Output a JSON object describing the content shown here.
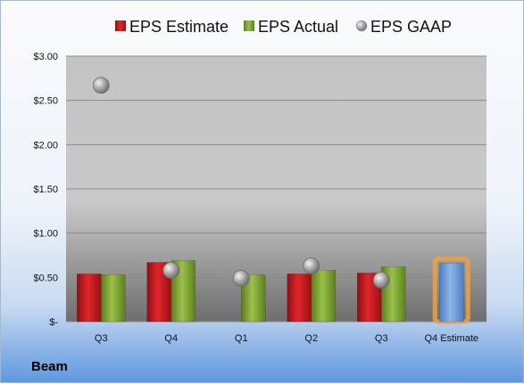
{
  "brand": "Beam",
  "chart_data": {
    "type": "bar",
    "categories": [
      "Q3",
      "Q4",
      "Q1",
      "Q2",
      "Q3",
      "Q4 Estimate"
    ],
    "series": [
      {
        "name": "EPS Estimate",
        "kind": "bar",
        "color": "#c0181c",
        "values": [
          0.54,
          0.67,
          null,
          0.54,
          0.55,
          null
        ]
      },
      {
        "name": "EPS Actual",
        "kind": "bar",
        "color": "#7a9e2e",
        "values": [
          0.53,
          0.69,
          0.53,
          0.58,
          0.62,
          null
        ]
      },
      {
        "name": "EPS GAAP",
        "kind": "marker",
        "color": "#9a9a9a",
        "values": [
          2.67,
          0.58,
          0.49,
          0.63,
          0.47,
          null
        ]
      },
      {
        "name": "",
        "kind": "highlight-bar",
        "color": "#6f9fdc",
        "values": [
          null,
          null,
          null,
          null,
          null,
          0.66
        ]
      }
    ],
    "ylim": [
      0,
      3
    ],
    "yticks": [
      0,
      0.5,
      1,
      1.5,
      2,
      2.5,
      3
    ],
    "ytick_labels": [
      "$-",
      "$0.50",
      "$1.00",
      "$1.50",
      "$2.00",
      "$2.50",
      "$3.00"
    ],
    "grid": true,
    "legend": "top",
    "title": "",
    "xlabel": "",
    "ylabel": ""
  }
}
